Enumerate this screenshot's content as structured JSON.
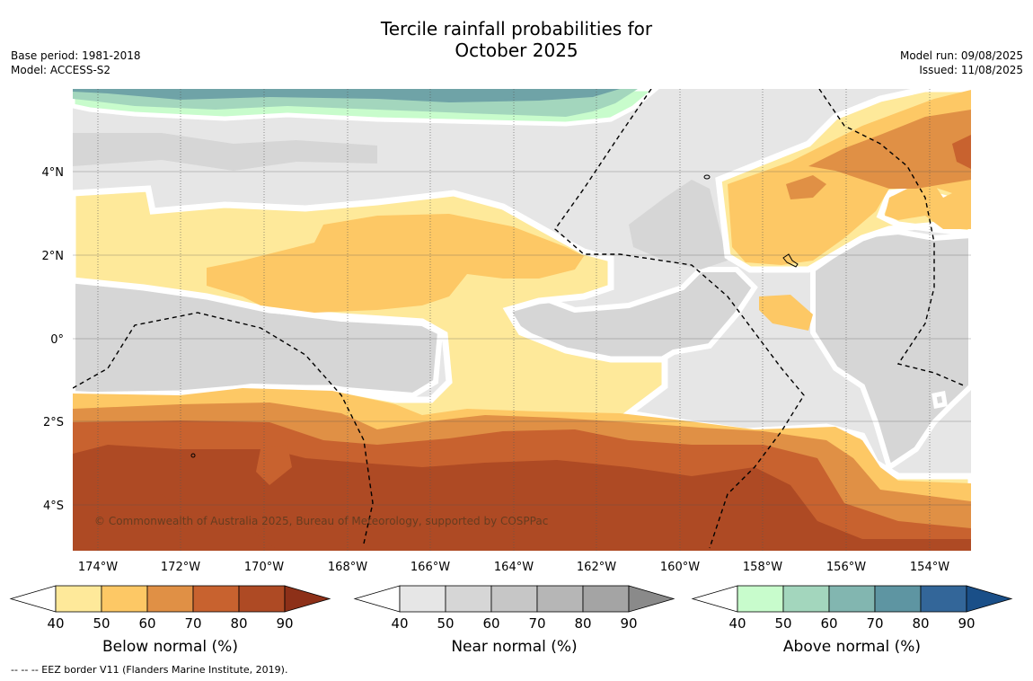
{
  "title": {
    "line1": "Tercile rainfall probabilities for",
    "line2": "October 2025"
  },
  "meta_left": {
    "base_period": "Base period: 1981-2018",
    "model": "Model: ACCESS-S2"
  },
  "meta_right": {
    "model_run": "Model run: 09/08/2025",
    "issued": "Issued: 11/08/2025"
  },
  "map": {
    "copyright": "© Commonwealth of Australia 2025, Bureau of Meteorology, supported by COSPPac",
    "lon_labels": [
      "174°W",
      "172°W",
      "170°W",
      "168°W",
      "166°W",
      "164°W",
      "162°W",
      "160°W",
      "158°W",
      "156°W",
      "154°W"
    ],
    "lat_labels": [
      "4°N",
      "2°N",
      "0°",
      "2°S",
      "4°S"
    ]
  },
  "legends": [
    {
      "label": "Below normal (%)",
      "ticks": [
        "40",
        "50",
        "60",
        "70",
        "80",
        "90"
      ],
      "colors": [
        "#fee99a",
        "#fdc865",
        "#e09045",
        "#c8622f",
        "#ae4a24",
        "#8d3018"
      ]
    },
    {
      "label": "Near normal (%)",
      "ticks": [
        "40",
        "50",
        "60",
        "70",
        "80",
        "90"
      ],
      "colors": [
        "#e6e6e6",
        "#d6d6d6",
        "#c6c6c6",
        "#b6b6b6",
        "#a4a4a4",
        "#8a8a8a"
      ]
    },
    {
      "label": "Above normal (%)",
      "ticks": [
        "40",
        "50",
        "60",
        "70",
        "80",
        "90"
      ],
      "colors": [
        "#c8fccc",
        "#a3d6bd",
        "#82b6b0",
        "#5e95a2",
        "#336699",
        "#1a4f88"
      ]
    }
  ],
  "footer": "--  --  -- EEZ border V11 (Flanders Marine Institute, 2019)."
}
